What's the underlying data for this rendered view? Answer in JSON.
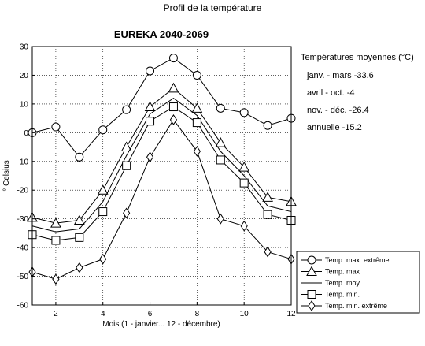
{
  "chart_data": {
    "type": "line",
    "suptitle": "Profil de la température",
    "title": "EUREKA  2040-2069",
    "xlabel": "Mois (1 - janvier... 12 - décembre)",
    "ylabel": "° Celsius",
    "xlim": [
      1,
      12
    ],
    "ylim": [
      -60,
      30
    ],
    "xticks": [
      "2",
      "4",
      "6",
      "8",
      "10",
      "12"
    ],
    "yticks": [
      "30",
      "20",
      "10",
      "0",
      "-10",
      "-20",
      "-30",
      "-40",
      "-50",
      "-60"
    ],
    "grid": true,
    "legend_position": "bottom-right",
    "x": [
      1,
      2,
      3,
      4,
      5,
      6,
      7,
      8,
      9,
      10,
      11,
      12
    ],
    "series": [
      {
        "name": "Temp. max. extrême",
        "marker": "circle",
        "values": [
          0,
          2,
          -8.5,
          1,
          8,
          21.5,
          26,
          20,
          8.5,
          7,
          2.5,
          5
        ]
      },
      {
        "name": "Temp. max",
        "marker": "triangle",
        "values": [
          -29.5,
          -31.5,
          -30.5,
          -20,
          -5,
          9,
          15.5,
          8.5,
          -3.5,
          -12,
          -22.5,
          -24
        ]
      },
      {
        "name": "Temp. moy.",
        "marker": "none",
        "values": [
          -32.5,
          -34.5,
          -33.5,
          -24,
          -8,
          6.5,
          12,
          6,
          -6.5,
          -15,
          -25.5,
          -27.5
        ]
      },
      {
        "name": "Temp. min.",
        "marker": "square",
        "values": [
          -35.5,
          -37.5,
          -36.5,
          -27.5,
          -11.5,
          4,
          9,
          3.5,
          -9.5,
          -17.5,
          -28.5,
          -30.5
        ]
      },
      {
        "name": "Temp. min. extrême",
        "marker": "diamond",
        "values": [
          -48.5,
          -51,
          -47,
          -44,
          -28,
          -8.5,
          4.5,
          -6.5,
          -30,
          -32.5,
          -41.5,
          -44
        ]
      }
    ],
    "info": {
      "heading": "Températures moyennes (°C)",
      "lines": [
        "janv. - mars -33.6",
        "avril -  oct. -4",
        "nov. -  déc. -26.4",
        "annuelle -15.2"
      ]
    }
  }
}
